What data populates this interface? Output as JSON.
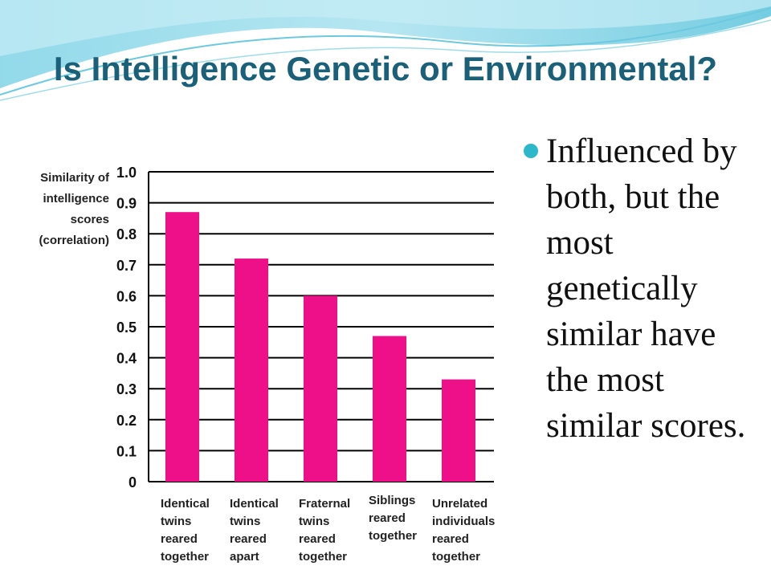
{
  "slide": {
    "title": "Is Intelligence Genetic or Environmental?",
    "bullet": "Influenced by both, but the most genetically similar have the most similar scores.",
    "accent_color": "#2bb8c9",
    "title_color": "#1a6079",
    "bullet_icon": "bullet-dot-icon"
  },
  "chart_data": {
    "type": "bar",
    "title": "",
    "ylabel_lines": [
      "Similarity of",
      "intelligence",
      "scores",
      "(correlation)"
    ],
    "xlabel": "",
    "ylim": [
      0,
      1.0
    ],
    "yticks": [
      "0",
      "0.1",
      "0.2",
      "0.3",
      "0.4",
      "0.5",
      "0.6",
      "0.7",
      "0.8",
      "0.9",
      "1.0"
    ],
    "categories": [
      [
        "Identical",
        "twins",
        "reared",
        "together"
      ],
      [
        "Identical",
        "twins",
        "reared",
        "apart"
      ],
      [
        "Fraternal",
        "twins",
        "reared",
        "together"
      ],
      [
        "Siblings",
        "reared",
        "together"
      ],
      [
        "Unrelated",
        "individuals",
        "reared",
        "together"
      ]
    ],
    "values": [
      0.87,
      0.72,
      0.6,
      0.47,
      0.33
    ],
    "bar_color": "#ee1089",
    "grid": true
  }
}
